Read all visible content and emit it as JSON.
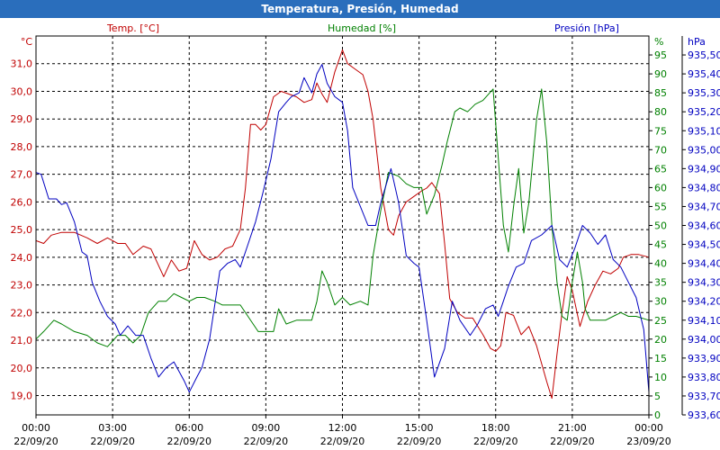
{
  "window": {
    "title": "Temperatura, Presión, Humedad"
  },
  "chart_data": {
    "type": "line",
    "title": "Temperatura, Presión, Humedad",
    "grid": true,
    "axes": {
      "temp": {
        "label": "Temp. [°C]",
        "unit": "°C",
        "min": 18.3,
        "max": 32.0,
        "color": "#c00000",
        "ticks": [
          "19,0",
          "20,0",
          "21,0",
          "22,0",
          "23,0",
          "24,0",
          "25,0",
          "26,0",
          "27,0",
          "28,0",
          "29,0",
          "30,0",
          "31,0"
        ]
      },
      "hum": {
        "label": "Humedad [%]",
        "unit": "%",
        "min": 0,
        "max": 100,
        "color": "#008000",
        "ticks": [
          "0",
          "5",
          "10",
          "15",
          "20",
          "25",
          "30",
          "35",
          "40",
          "45",
          "50",
          "55",
          "60",
          "65",
          "70",
          "75",
          "80",
          "85",
          "90",
          "95"
        ]
      },
      "pres": {
        "label": "Presión [hPa]",
        "unit": "hPa",
        "min": 933.6,
        "max": 935.6,
        "color": "#0000c0",
        "ticks": [
          "933,60",
          "933,70",
          "933,80",
          "933,90",
          "934,00",
          "934,10",
          "934,20",
          "934,30",
          "934,40",
          "934,50",
          "934,60",
          "934,70",
          "934,80",
          "934,90",
          "935,00",
          "935,10",
          "935,20",
          "935,30",
          "935,40",
          "935,50"
        ]
      }
    },
    "x_ticks": [
      {
        "time": "00:00",
        "date": "22/09/20"
      },
      {
        "time": "03:00",
        "date": "22/09/20"
      },
      {
        "time": "06:00",
        "date": "22/09/20"
      },
      {
        "time": "09:00",
        "date": "22/09/20"
      },
      {
        "time": "12:00",
        "date": "22/09/20"
      },
      {
        "time": "15:00",
        "date": "22/09/20"
      },
      {
        "time": "18:00",
        "date": "22/09/20"
      },
      {
        "time": "21:00",
        "date": "22/09/20"
      },
      {
        "time": "00:00",
        "date": "23/09/20"
      }
    ],
    "x_range_hours": [
      0,
      24
    ],
    "series": [
      {
        "name": "Temp. [°C]",
        "axis": "temp",
        "color": "#c00000",
        "points": [
          [
            0,
            24.6
          ],
          [
            0.3,
            24.5
          ],
          [
            0.6,
            24.8
          ],
          [
            1.0,
            24.9
          ],
          [
            1.5,
            24.9
          ],
          [
            2.0,
            24.7
          ],
          [
            2.4,
            24.5
          ],
          [
            2.8,
            24.7
          ],
          [
            3.2,
            24.5
          ],
          [
            3.5,
            24.5
          ],
          [
            3.8,
            24.1
          ],
          [
            4.2,
            24.4
          ],
          [
            4.5,
            24.3
          ],
          [
            4.8,
            23.7
          ],
          [
            5.0,
            23.3
          ],
          [
            5.3,
            23.9
          ],
          [
            5.6,
            23.5
          ],
          [
            5.9,
            23.6
          ],
          [
            6.2,
            24.6
          ],
          [
            6.5,
            24.1
          ],
          [
            6.8,
            23.9
          ],
          [
            7.1,
            24.0
          ],
          [
            7.4,
            24.3
          ],
          [
            7.7,
            24.4
          ],
          [
            8.0,
            25.0
          ],
          [
            8.2,
            26.5
          ],
          [
            8.4,
            28.8
          ],
          [
            8.6,
            28.8
          ],
          [
            8.8,
            28.6
          ],
          [
            9.0,
            28.8
          ],
          [
            9.3,
            29.8
          ],
          [
            9.6,
            30.0
          ],
          [
            9.9,
            29.9
          ],
          [
            10.2,
            29.8
          ],
          [
            10.5,
            29.6
          ],
          [
            10.8,
            29.7
          ],
          [
            11.0,
            30.3
          ],
          [
            11.2,
            29.9
          ],
          [
            11.4,
            29.6
          ],
          [
            11.7,
            30.7
          ],
          [
            12.0,
            31.5
          ],
          [
            12.2,
            31.0
          ],
          [
            12.5,
            30.8
          ],
          [
            12.8,
            30.6
          ],
          [
            13.0,
            30.0
          ],
          [
            13.2,
            29.0
          ],
          [
            13.5,
            26.5
          ],
          [
            13.8,
            25.0
          ],
          [
            14.0,
            24.8
          ],
          [
            14.2,
            25.5
          ],
          [
            14.5,
            26.0
          ],
          [
            14.8,
            26.2
          ],
          [
            15.1,
            26.4
          ],
          [
            15.3,
            26.5
          ],
          [
            15.5,
            26.7
          ],
          [
            15.8,
            26.3
          ],
          [
            16.0,
            24.5
          ],
          [
            16.2,
            22.5
          ],
          [
            16.5,
            22.0
          ],
          [
            16.8,
            21.8
          ],
          [
            17.1,
            21.8
          ],
          [
            17.5,
            21.2
          ],
          [
            17.8,
            20.7
          ],
          [
            18.0,
            20.6
          ],
          [
            18.2,
            20.8
          ],
          [
            18.4,
            22.0
          ],
          [
            18.7,
            21.9
          ],
          [
            19.0,
            21.2
          ],
          [
            19.3,
            21.5
          ],
          [
            19.6,
            20.8
          ],
          [
            20.0,
            19.5
          ],
          [
            20.2,
            18.9
          ],
          [
            20.4,
            20.5
          ],
          [
            20.6,
            22.0
          ],
          [
            20.8,
            23.3
          ],
          [
            21.0,
            22.8
          ],
          [
            21.3,
            21.5
          ],
          [
            21.6,
            22.4
          ],
          [
            21.9,
            23.0
          ],
          [
            22.2,
            23.5
          ],
          [
            22.5,
            23.4
          ],
          [
            22.8,
            23.6
          ],
          [
            23.0,
            24.0
          ],
          [
            23.3,
            24.1
          ],
          [
            23.6,
            24.1
          ],
          [
            24.0,
            24.0
          ]
        ]
      },
      {
        "name": "Humedad [%]",
        "axis": "hum",
        "color": "#008000",
        "points": [
          [
            0,
            20
          ],
          [
            0.3,
            22
          ],
          [
            0.7,
            25
          ],
          [
            1.0,
            24
          ],
          [
            1.5,
            22
          ],
          [
            2.0,
            21
          ],
          [
            2.4,
            19
          ],
          [
            2.8,
            18
          ],
          [
            3.2,
            21
          ],
          [
            3.5,
            21
          ],
          [
            3.8,
            19
          ],
          [
            4.1,
            21
          ],
          [
            4.4,
            27
          ],
          [
            4.8,
            30
          ],
          [
            5.1,
            30
          ],
          [
            5.4,
            32
          ],
          [
            5.7,
            31
          ],
          [
            6.0,
            30
          ],
          [
            6.3,
            31
          ],
          [
            6.6,
            31
          ],
          [
            7.0,
            30
          ],
          [
            7.3,
            29
          ],
          [
            7.6,
            29
          ],
          [
            8.0,
            29
          ],
          [
            8.3,
            26
          ],
          [
            8.7,
            22
          ],
          [
            9.0,
            22
          ],
          [
            9.3,
            22
          ],
          [
            9.5,
            28
          ],
          [
            9.8,
            24
          ],
          [
            10.2,
            25
          ],
          [
            10.5,
            25
          ],
          [
            10.8,
            25
          ],
          [
            11.0,
            30
          ],
          [
            11.2,
            38
          ],
          [
            11.4,
            35
          ],
          [
            11.7,
            29
          ],
          [
            12.0,
            31
          ],
          [
            12.3,
            29
          ],
          [
            12.7,
            30
          ],
          [
            13.0,
            29
          ],
          [
            13.2,
            42
          ],
          [
            13.5,
            54
          ],
          [
            13.8,
            64
          ],
          [
            14.2,
            63
          ],
          [
            14.5,
            61
          ],
          [
            14.8,
            60
          ],
          [
            15.1,
            60
          ],
          [
            15.3,
            53
          ],
          [
            15.6,
            58
          ],
          [
            15.9,
            66
          ],
          [
            16.1,
            72
          ],
          [
            16.4,
            80
          ],
          [
            16.6,
            81
          ],
          [
            16.9,
            80
          ],
          [
            17.2,
            82
          ],
          [
            17.5,
            83
          ],
          [
            17.9,
            86
          ],
          [
            18.1,
            68
          ],
          [
            18.3,
            50
          ],
          [
            18.5,
            43
          ],
          [
            18.7,
            55
          ],
          [
            18.9,
            65
          ],
          [
            19.1,
            48
          ],
          [
            19.3,
            56
          ],
          [
            19.6,
            78
          ],
          [
            19.8,
            86
          ],
          [
            20.0,
            72
          ],
          [
            20.2,
            50
          ],
          [
            20.4,
            35
          ],
          [
            20.6,
            26
          ],
          [
            20.8,
            25
          ],
          [
            21.0,
            35
          ],
          [
            21.2,
            43
          ],
          [
            21.4,
            35
          ],
          [
            21.5,
            28
          ],
          [
            21.7,
            25
          ],
          [
            22.0,
            25
          ],
          [
            22.3,
            25
          ],
          [
            22.6,
            26
          ],
          [
            22.9,
            27
          ],
          [
            23.2,
            26
          ],
          [
            23.5,
            26
          ],
          [
            24.0,
            25
          ]
        ]
      },
      {
        "name": "Presión [hPa]",
        "axis": "pres",
        "color": "#0000c0",
        "points": [
          [
            0,
            934.88
          ],
          [
            0.2,
            934.87
          ],
          [
            0.5,
            934.74
          ],
          [
            0.8,
            934.74
          ],
          [
            1.0,
            934.71
          ],
          [
            1.2,
            934.72
          ],
          [
            1.5,
            934.62
          ],
          [
            1.8,
            934.46
          ],
          [
            2.0,
            934.44
          ],
          [
            2.2,
            934.3
          ],
          [
            2.5,
            934.2
          ],
          [
            2.8,
            934.12
          ],
          [
            3.1,
            934.08
          ],
          [
            3.3,
            934.02
          ],
          [
            3.6,
            934.07
          ],
          [
            3.9,
            934.02
          ],
          [
            4.2,
            934.02
          ],
          [
            4.5,
            933.9
          ],
          [
            4.8,
            933.8
          ],
          [
            5.1,
            933.85
          ],
          [
            5.4,
            933.88
          ],
          [
            5.8,
            933.78
          ],
          [
            6.0,
            933.72
          ],
          [
            6.3,
            933.8
          ],
          [
            6.5,
            933.85
          ],
          [
            6.8,
            934.0
          ],
          [
            7.0,
            934.18
          ],
          [
            7.2,
            934.36
          ],
          [
            7.5,
            934.4
          ],
          [
            7.8,
            934.42
          ],
          [
            8.0,
            934.38
          ],
          [
            8.3,
            934.5
          ],
          [
            8.6,
            934.62
          ],
          [
            8.9,
            934.78
          ],
          [
            9.2,
            934.95
          ],
          [
            9.5,
            935.2
          ],
          [
            9.8,
            935.25
          ],
          [
            10.0,
            935.28
          ],
          [
            10.3,
            935.3
          ],
          [
            10.5,
            935.38
          ],
          [
            10.8,
            935.3
          ],
          [
            11.0,
            935.4
          ],
          [
            11.2,
            935.45
          ],
          [
            11.4,
            935.35
          ],
          [
            11.7,
            935.28
          ],
          [
            12.0,
            935.25
          ],
          [
            12.2,
            935.1
          ],
          [
            12.4,
            934.8
          ],
          [
            12.7,
            934.7
          ],
          [
            13.0,
            934.6
          ],
          [
            13.3,
            934.6
          ],
          [
            13.5,
            934.72
          ],
          [
            13.9,
            934.9
          ],
          [
            14.2,
            934.72
          ],
          [
            14.5,
            934.44
          ],
          [
            14.8,
            934.4
          ],
          [
            15.0,
            934.38
          ],
          [
            15.3,
            934.1
          ],
          [
            15.6,
            933.8
          ],
          [
            16.0,
            933.95
          ],
          [
            16.3,
            934.2
          ],
          [
            16.6,
            934.1
          ],
          [
            17.0,
            934.02
          ],
          [
            17.3,
            934.08
          ],
          [
            17.6,
            934.16
          ],
          [
            17.9,
            934.18
          ],
          [
            18.1,
            934.12
          ],
          [
            18.3,
            934.2
          ],
          [
            18.5,
            934.28
          ],
          [
            18.8,
            934.38
          ],
          [
            19.1,
            934.4
          ],
          [
            19.4,
            934.52
          ],
          [
            19.8,
            934.55
          ],
          [
            20.2,
            934.6
          ],
          [
            20.5,
            934.42
          ],
          [
            20.8,
            934.38
          ],
          [
            21.1,
            934.48
          ],
          [
            21.4,
            934.6
          ],
          [
            21.7,
            934.56
          ],
          [
            22.0,
            934.5
          ],
          [
            22.3,
            934.55
          ],
          [
            22.6,
            934.42
          ],
          [
            22.9,
            934.38
          ],
          [
            23.2,
            934.3
          ],
          [
            23.5,
            934.22
          ],
          [
            23.8,
            934.05
          ],
          [
            24.0,
            933.72
          ]
        ]
      }
    ]
  }
}
